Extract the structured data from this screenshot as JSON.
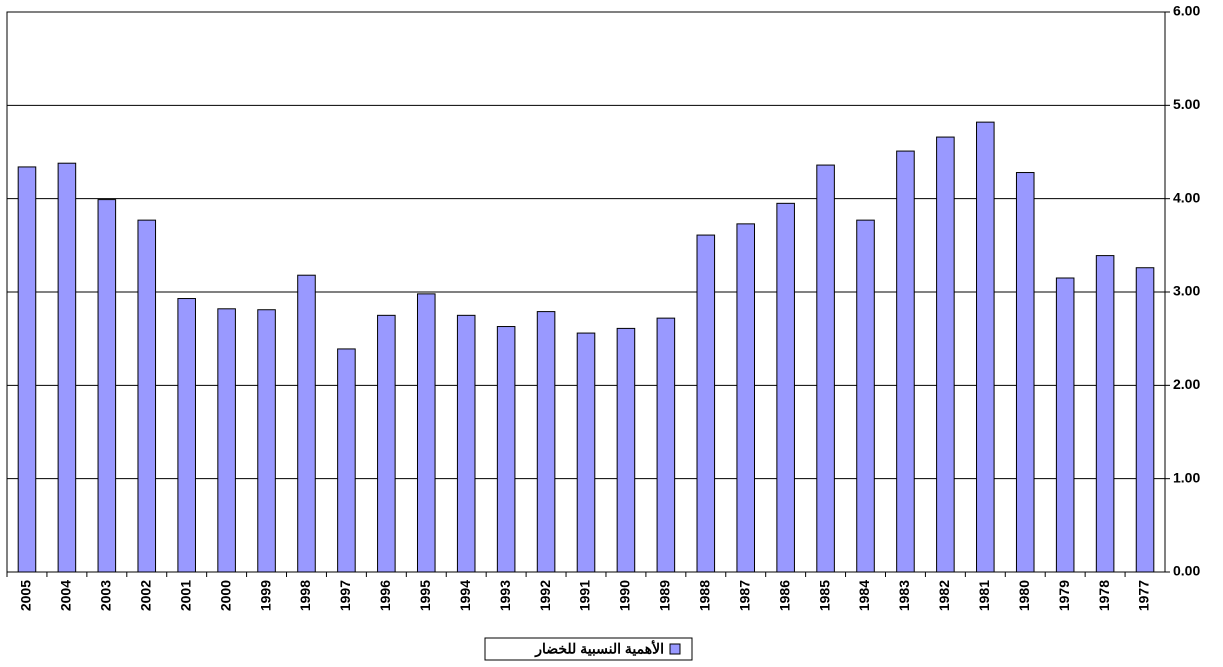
{
  "chart_data": {
    "type": "bar",
    "categories": [
      "2005",
      "2004",
      "2003",
      "2002",
      "2001",
      "2000",
      "1999",
      "1998",
      "1997",
      "1996",
      "1995",
      "1994",
      "1993",
      "1992",
      "1991",
      "1990",
      "1989",
      "1988",
      "1987",
      "1986",
      "1985",
      "1984",
      "1983",
      "1982",
      "1981",
      "1980",
      "1979",
      "1978",
      "1977"
    ],
    "series": [
      {
        "name": "الأهمية النسبية للخضار",
        "color": "#9999ff",
        "values": [
          4.34,
          4.38,
          3.99,
          3.77,
          2.93,
          2.82,
          2.81,
          3.18,
          2.39,
          2.75,
          2.98,
          2.75,
          2.63,
          2.79,
          2.56,
          2.61,
          2.72,
          3.61,
          3.73,
          3.95,
          4.36,
          3.77,
          4.51,
          4.66,
          4.82,
          4.28,
          3.15,
          3.39,
          3.26
        ]
      }
    ],
    "ylim": [
      0,
      6
    ],
    "yticks": [
      {
        "value": 0,
        "label": "0.00"
      },
      {
        "value": 1,
        "label": "1.00"
      },
      {
        "value": 2,
        "label": "2.00"
      },
      {
        "value": 3,
        "label": "3.00"
      },
      {
        "value": 4,
        "label": "4.00"
      },
      {
        "value": 5,
        "label": "5.00"
      },
      {
        "value": 6,
        "label": "6.00"
      }
    ],
    "grid": true,
    "y_axis_side": "right",
    "legend": "bottom"
  }
}
